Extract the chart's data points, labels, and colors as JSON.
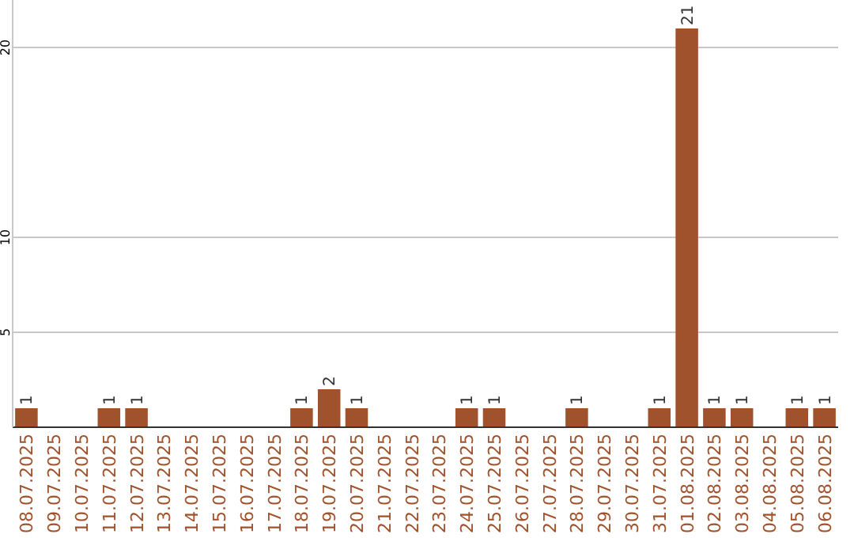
{
  "chart_data": {
    "type": "bar",
    "categories": [
      "08.07.2025",
      "09.07.2025",
      "10.07.2025",
      "11.07.2025",
      "12.07.2025",
      "13.07.2025",
      "14.07.2025",
      "15.07.2025",
      "16.07.2025",
      "17.07.2025",
      "18.07.2025",
      "19.07.2025",
      "20.07.2025",
      "21.07.2025",
      "22.07.2025",
      "23.07.2025",
      "24.07.2025",
      "25.07.2025",
      "26.07.2025",
      "27.07.2025",
      "28.07.2025",
      "29.07.2025",
      "30.07.2025",
      "31.07.2025",
      "01.08.2025",
      "02.08.2025",
      "03.08.2025",
      "04.08.2025",
      "05.08.2025",
      "06.08.2025"
    ],
    "values": [
      1,
      0,
      0,
      1,
      1,
      0,
      0,
      0,
      0,
      0,
      1,
      2,
      1,
      0,
      0,
      0,
      1,
      1,
      0,
      0,
      1,
      0,
      0,
      1,
      21,
      1,
      1,
      0,
      1,
      1
    ],
    "value_labels": [
      "1",
      null,
      null,
      "1",
      "1",
      null,
      null,
      null,
      null,
      null,
      "1",
      "2",
      "1",
      null,
      null,
      null,
      "1",
      "1",
      null,
      null,
      "1",
      null,
      null,
      "1",
      "21",
      "1",
      "1",
      null,
      "1",
      "1"
    ],
    "color": "#a0522d",
    "ylim": [
      0,
      22.5
    ],
    "yticks": [
      5,
      10,
      20
    ],
    "grid": "y"
  }
}
